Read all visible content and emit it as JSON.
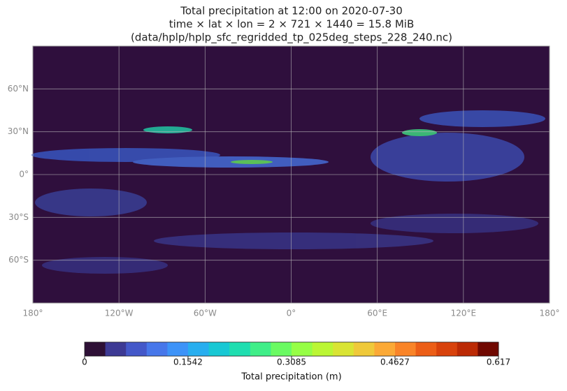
{
  "chart_data": {
    "type": "map",
    "title": [
      "Total precipitation at 12:00 on 2020-07-30",
      "time × lat × lon = 2 × 721 × 1440 = 15.8 MiB",
      "(data/hplp/hplp_sfc_regridded_tp_025deg_steps_228_240.nc)"
    ],
    "xlim": [
      -180,
      180
    ],
    "ylim": [
      -90,
      90
    ],
    "xticks": [
      {
        "value": -180,
        "label": "180°"
      },
      {
        "value": -120,
        "label": "120°W"
      },
      {
        "value": -60,
        "label": "60°W"
      },
      {
        "value": 0,
        "label": "0°"
      },
      {
        "value": 60,
        "label": "60°E"
      },
      {
        "value": 120,
        "label": "120°E"
      },
      {
        "value": 180,
        "label": "180°"
      }
    ],
    "yticks": [
      {
        "value": 60,
        "label": "60°N"
      },
      {
        "value": 30,
        "label": "30°N"
      },
      {
        "value": 0,
        "label": "0°"
      },
      {
        "value": -30,
        "label": "30°S"
      },
      {
        "value": -60,
        "label": "60°S"
      }
    ],
    "grid": true,
    "colorbar": {
      "label": "Total precipitation (m)",
      "lim": [
        0,
        0.617
      ],
      "ticks": [
        0,
        0.1542,
        0.3085,
        0.4627,
        0.617
      ],
      "colors": [
        "#2e1036",
        "#3d3a94",
        "#4458c9",
        "#4777ea",
        "#3d93f8",
        "#28aeef",
        "#18c8d4",
        "#1fdeb0",
        "#3fee88",
        "#6afa62",
        "#96fe45",
        "#bbf634",
        "#d9e434",
        "#efc93a",
        "#fba936",
        "#f98428",
        "#ec5e17",
        "#d8420c",
        "#bb2a05",
        "#700801"
      ]
    }
  }
}
